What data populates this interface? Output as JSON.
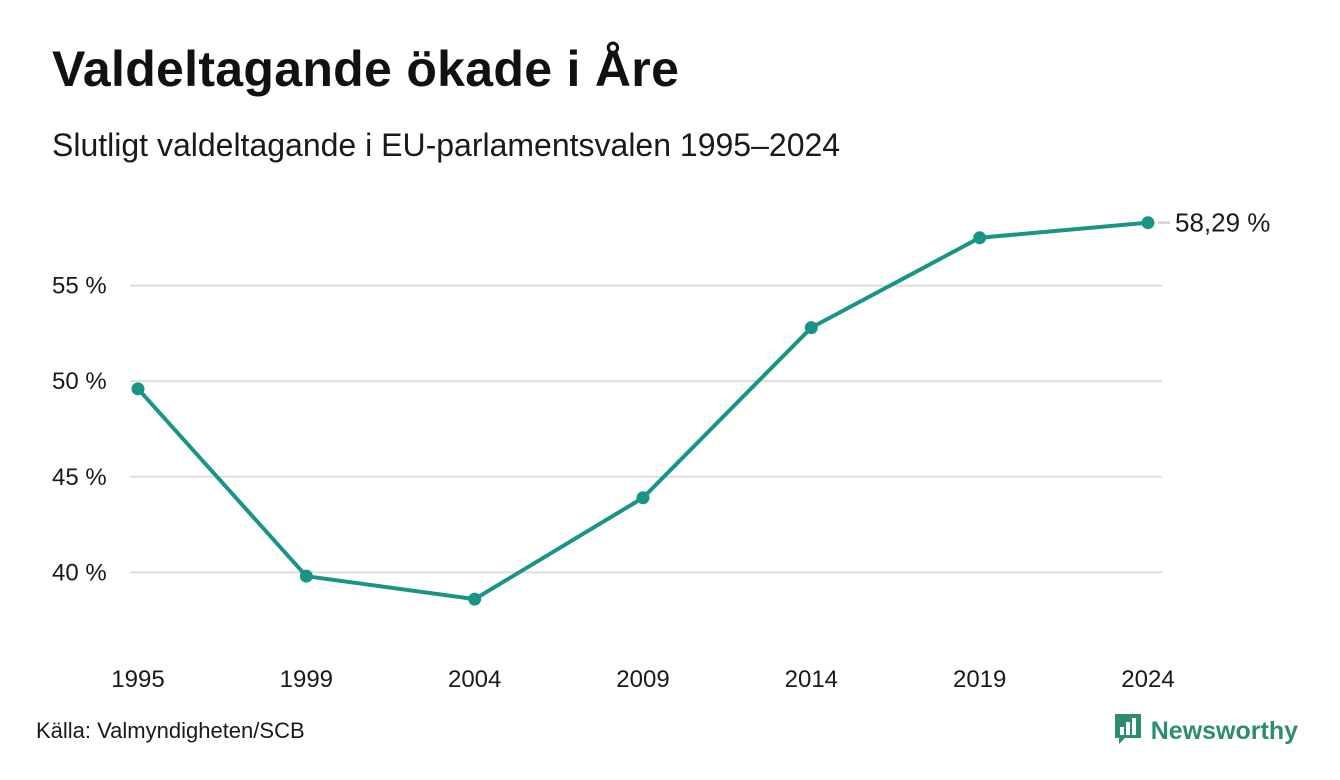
{
  "header": {
    "title": "Valdeltagande ökade i Åre",
    "subtitle": "Slutligt valdeltagande i EU-parlamentsvalen 1995–2024"
  },
  "footer": {
    "source": "Källa: Valmyndigheten/SCB",
    "brand": "Newsworthy",
    "brand_icon": "bar-chart-speech-bubble-icon"
  },
  "colors": {
    "line": "#1a9585",
    "grid": "#dddddd",
    "brand": "#2d8c72"
  },
  "chart_data": {
    "type": "line",
    "x": [
      "1995",
      "1999",
      "2004",
      "2009",
      "2014",
      "2019",
      "2024"
    ],
    "series": [
      {
        "values": [
          49.6,
          39.8,
          38.6,
          43.9,
          52.8,
          57.5,
          58.29
        ]
      }
    ],
    "y_ticks": [
      40,
      45,
      50,
      55
    ],
    "y_tick_labels": [
      "40 %",
      "45 %",
      "50 %",
      "55 %"
    ],
    "ylim": [
      36.2,
      60
    ],
    "end_label": "58,29 %",
    "grid": true,
    "legend": "none"
  }
}
